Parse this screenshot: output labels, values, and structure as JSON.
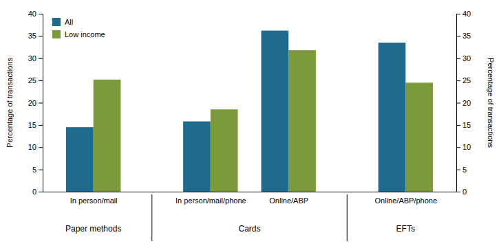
{
  "chart_data": {
    "type": "bar",
    "categories": [
      "In person/mail",
      "In person/mail/phone",
      "Online/ABP",
      "Online/ABP/phone"
    ],
    "category_groups": [
      {
        "text": "Paper methods",
        "categories": [
          "In person/mail"
        ]
      },
      {
        "text": "Cards",
        "categories": [
          "In person/mail/phone",
          "Online/ABP"
        ]
      },
      {
        "text": "EFTs",
        "categories": [
          "Online/ABP/phone"
        ]
      }
    ],
    "series": [
      {
        "name": "All",
        "color": "#1f6b8e",
        "values": [
          14.5,
          15.8,
          36.2,
          33.5
        ]
      },
      {
        "name": "Low income",
        "color": "#7a9a3b",
        "values": [
          25.2,
          18.5,
          31.8,
          24.5
        ]
      }
    ],
    "y_label": "Percentage of transactions",
    "y2_label": "Percentage of transactions",
    "ylim": [
      0,
      40
    ],
    "yticks": [
      0,
      5,
      10,
      15,
      20,
      25,
      30,
      35,
      40
    ],
    "y2lim": [
      0,
      40
    ],
    "y2ticks": [
      0,
      5,
      10,
      15,
      20,
      25,
      30,
      35,
      40
    ],
    "legend": "upper left",
    "grid": false
  }
}
